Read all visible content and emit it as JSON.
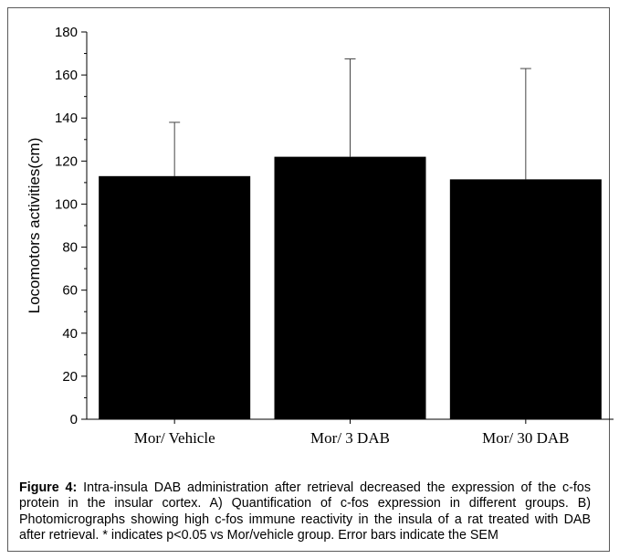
{
  "chart_data": {
    "type": "bar",
    "categories": [
      "Mor/ Vehicle",
      "Mor/ 3 DAB",
      "Mor/ 30 DAB"
    ],
    "values": [
      113,
      122,
      111.5
    ],
    "error_upper": [
      138,
      167.5,
      163
    ],
    "ylabel": "Locomotors activities(cm)",
    "xlabel": "",
    "ylim": [
      0,
      180
    ],
    "yticks": [
      0,
      20,
      40,
      60,
      80,
      100,
      120,
      140,
      160,
      180
    ],
    "grid": false,
    "bar_color": "#000000"
  },
  "caption": {
    "label": "Figure 4:",
    "text": "Intra-insula DAB administration after retrieval decreased the expression of the c-fos protein in the insular cortex. A) Quantification of c-fos expression in different groups. B) Photomicrographs showing high c-fos immune reactivity in the insula of a rat treated with DAB after retrieval. * indicates p<0.05 vs Mor/vehicle group. Error bars indicate the SEM"
  }
}
